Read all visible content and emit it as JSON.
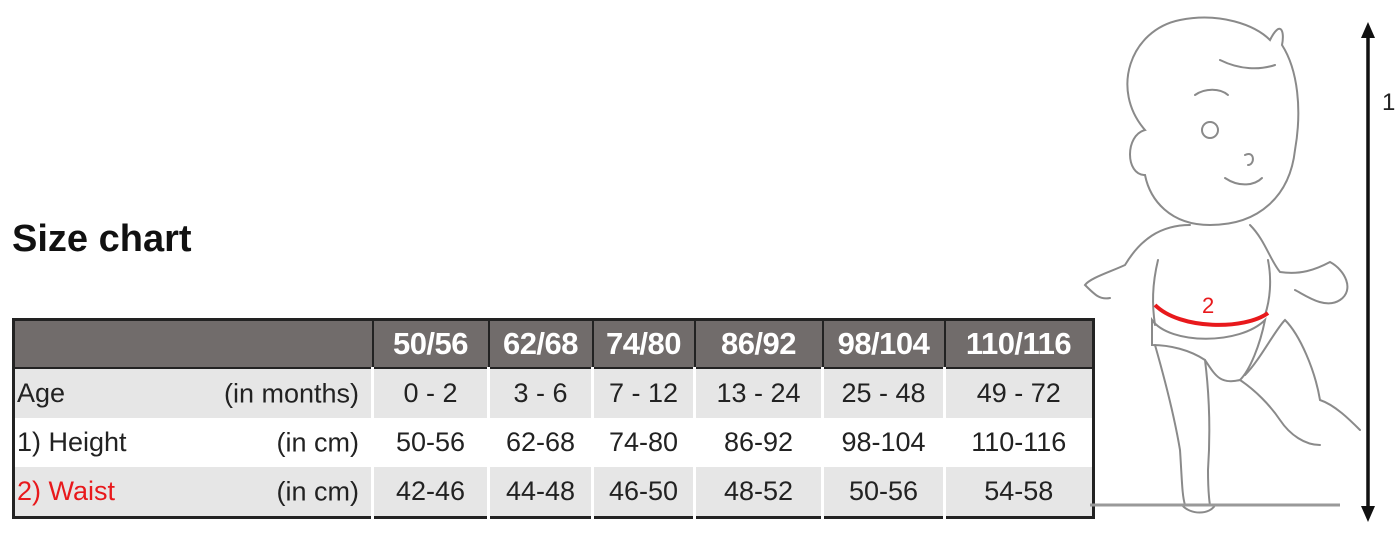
{
  "title": "Size chart",
  "table": {
    "headers": [
      "50/56",
      "62/68",
      "74/80",
      "86/92",
      "98/104",
      "110/116"
    ],
    "rows": [
      {
        "label": "Age",
        "unit": "(in months)",
        "values": [
          "0 - 2",
          "3 - 6",
          "7 - 12",
          "13 - 24",
          "25 - 48",
          "49 - 72"
        ]
      },
      {
        "label": "1) Height",
        "unit": "(in cm)",
        "values": [
          "50-56",
          "62-68",
          "74-80",
          "86-92",
          "98-104",
          "110-116"
        ]
      },
      {
        "label": "2) Waist",
        "unit": "(in cm)",
        "values": [
          "42-46",
          "44-48",
          "46-50",
          "48-52",
          "50-56",
          "54-58"
        ]
      }
    ]
  },
  "illustration": {
    "height_marker": "1",
    "waist_marker": "2",
    "accent_color": "#e8191c"
  }
}
